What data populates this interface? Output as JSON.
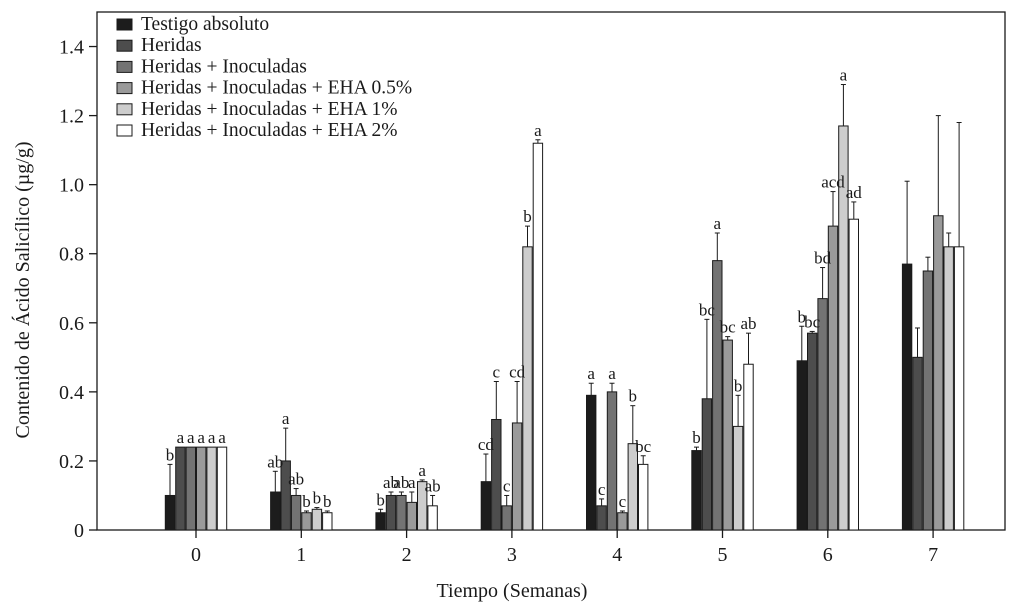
{
  "chart_data": {
    "type": "bar",
    "xlabel": "Tiempo (Semanas)",
    "ylabel": "Contenido de Ácido Salicílico (µg/g)",
    "ylim": [
      0,
      1.5
    ],
    "yticks": [
      0,
      0.2,
      0.4,
      0.6,
      0.8,
      1.0,
      1.2,
      1.4
    ],
    "ytick_labels": [
      "0",
      "0.2",
      "0.4",
      "0.6",
      "0.8",
      "1.0",
      "1.2",
      "1.4"
    ],
    "categories": [
      "0",
      "1",
      "2",
      "3",
      "4",
      "5",
      "6",
      "7"
    ],
    "grid": false,
    "legend_position": "top-left",
    "series": [
      {
        "name": "Testigo absoluto",
        "color": "#1c1c1c",
        "values": [
          0.1,
          0.11,
          0.05,
          0.14,
          0.39,
          0.23,
          0.49,
          0.77
        ],
        "errors": [
          0.09,
          0.06,
          0.01,
          0.08,
          0.035,
          0.01,
          0.1,
          0.24
        ],
        "labels": [
          "b",
          "ab",
          "b",
          "cd",
          "a",
          "b",
          "b",
          ""
        ]
      },
      {
        "name": "Heridas",
        "color": "#4d4d4d",
        "values": [
          0.24,
          0.2,
          0.1,
          0.32,
          0.07,
          0.38,
          0.57,
          0.5
        ],
        "errors": [
          0.0,
          0.095,
          0.01,
          0.11,
          0.02,
          0.23,
          0.005,
          0.085
        ],
        "labels": [
          "a",
          "a",
          "ab",
          "c",
          "c",
          "bc",
          "bc",
          ""
        ]
      },
      {
        "name": "Heridas + Inoculadas",
        "color": "#737373",
        "values": [
          0.24,
          0.1,
          0.1,
          0.07,
          0.4,
          0.78,
          0.67,
          0.75
        ],
        "errors": [
          0.0,
          0.02,
          0.01,
          0.03,
          0.025,
          0.08,
          0.09,
          0.04
        ],
        "labels": [
          "a",
          "ab",
          "ab",
          "c",
          "a",
          "a",
          "bd",
          ""
        ]
      },
      {
        "name": "Heridas + Inoculadas + EHA 0.5%",
        "color": "#9a9a9a",
        "values": [
          0.24,
          0.05,
          0.08,
          0.31,
          0.05,
          0.55,
          0.88,
          0.91
        ],
        "errors": [
          0.0,
          0.005,
          0.03,
          0.12,
          0.005,
          0.01,
          0.1,
          0.29
        ],
        "labels": [
          "a",
          "b",
          "a",
          "cd",
          "c",
          "bc",
          "acd",
          ""
        ]
      },
      {
        "name": "Heridas + Inoculadas + EHA 1%",
        "color": "#cdcdcd",
        "values": [
          0.24,
          0.06,
          0.14,
          0.82,
          0.25,
          0.3,
          1.17,
          0.82
        ],
        "errors": [
          0.0,
          0.005,
          0.005,
          0.06,
          0.11,
          0.09,
          0.12,
          0.04
        ],
        "labels": [
          "a",
          "b",
          "a",
          "b",
          "b",
          "b",
          "a",
          ""
        ]
      },
      {
        "name": "Heridas + Inoculadas + EHA 2%",
        "color": "#ffffff",
        "values": [
          0.24,
          0.05,
          0.07,
          1.12,
          0.19,
          0.48,
          0.9,
          0.82
        ],
        "errors": [
          0.0,
          0.005,
          0.03,
          0.01,
          0.025,
          0.09,
          0.05,
          0.36
        ],
        "labels": [
          "a",
          "b",
          "ab",
          "a",
          "bc",
          "ab",
          "ad",
          ""
        ]
      }
    ]
  }
}
